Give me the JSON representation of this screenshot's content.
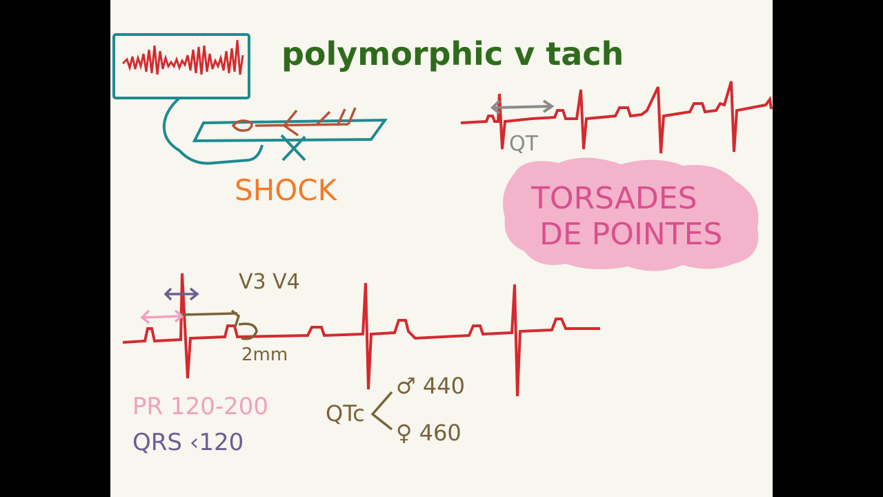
{
  "title": "polymorphic v tach",
  "shock_label": "SHOCK",
  "qt_label": "QT",
  "torsades": {
    "line1": "TORSADES",
    "line2": "DE POINTES"
  },
  "leads_label": "V3 V4",
  "mm_label": "2mm",
  "pr_label": "PR 120-200",
  "qrs_label": "QRS ‹120",
  "qtc_label": "QTc",
  "qtc_male": "♂ 440",
  "qtc_female": "♀ 460",
  "colors": {
    "board": "#f7f6ef",
    "ecg_red": "#d42a2f",
    "teal": "#1f8a8f",
    "title_green": "#2f6b1c",
    "shock_orange": "#f47a24",
    "pink_text": "#d94f8c",
    "pink_cloud": "#f3b3cb",
    "pr_pink": "#f0a0be",
    "qrs_purple": "#6a5f8f",
    "brown": "#7a6238",
    "gray": "#8a8a8a"
  }
}
